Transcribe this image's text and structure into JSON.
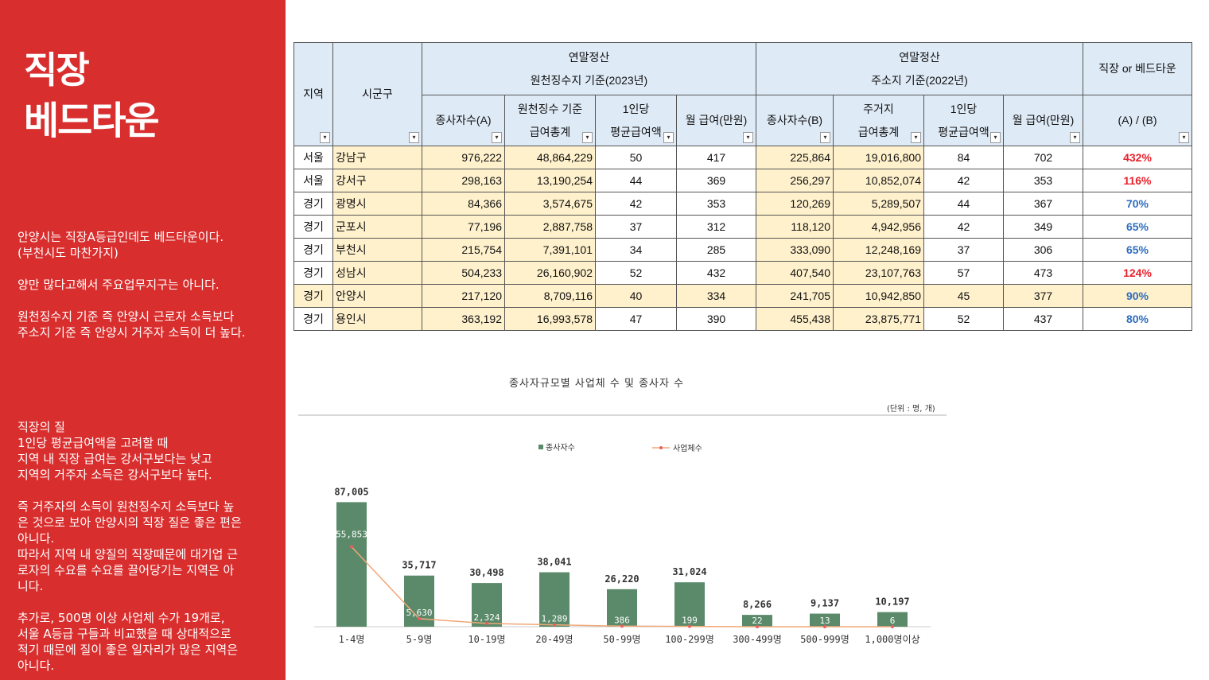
{
  "sidebar": {
    "title_line1": "직장",
    "title_line2": "베드타운",
    "desc1": "안양시는 직장A등급인데도 베드타운이다.\n(부천시도 마찬가지)\n\n양만 많다고해서 주요업무지구는 아니다.\n\n원천징수지 기준 즉 안양시 근로자 소득보다\n주소지 기준 즉 안양시 거주자 소득이 더 높다.",
    "desc2": "직장의 질\n1인당 평균급여액을 고려할 때\n지역 내 직장 급여는 강서구보다는 낮고\n지역의 거주자 소득은 강서구보다 높다.\n\n즉 거주자의 소득이 원천징수지 소득보다 높\n은 것으로 보아 안양시의 직장 질은 좋은 편은\n아니다.\n따라서 지역 내 양질의 직장때문에 대기업 근\n로자의 수요를 수요를 끌어당기는 지역은 아\n니다.\n\n추가로, 500명 이상 사업체 수가 19개로,\n서울 A등급 구들과 비교했을 때 상대적으로\n적기 때문에 질이 좋은 일자리가 많은 지역은\n아니다."
  },
  "table": {
    "h_region": "지역",
    "h_district": "시군구",
    "h_group1": "연말정산\n원천징수지 기준(2023년)",
    "h_group2": "연말정산\n주소지 기준(2022년)",
    "h_ratio": "직장 or 베드타운",
    "h_sub": [
      "종사자수(A)",
      "원천징수 기준\n급여총계",
      "1인당\n평균급여액",
      "월 급여(만원)",
      "종사자수(B)",
      "주거지\n급여총계",
      "1인당\n평균급여액",
      "월 급여(만원)",
      "(A) / (B)"
    ],
    "rows": [
      [
        "서울",
        "강남구",
        "976,222",
        "48,864,229",
        "50",
        "417",
        "225,864",
        "19,016,800",
        "84",
        "702",
        "432%"
      ],
      [
        "서울",
        "강서구",
        "298,163",
        "13,190,254",
        "44",
        "369",
        "256,297",
        "10,852,074",
        "42",
        "353",
        "116%"
      ],
      [
        "경기",
        "광명시",
        "84,366",
        "3,574,675",
        "42",
        "353",
        "120,269",
        "5,289,507",
        "44",
        "367",
        "70%"
      ],
      [
        "경기",
        "군포시",
        "77,196",
        "2,887,758",
        "37",
        "312",
        "118,120",
        "4,942,956",
        "42",
        "349",
        "65%"
      ],
      [
        "경기",
        "부천시",
        "215,754",
        "7,391,101",
        "34",
        "285",
        "333,090",
        "12,248,169",
        "37",
        "306",
        "65%"
      ],
      [
        "경기",
        "성남시",
        "504,233",
        "26,160,902",
        "52",
        "432",
        "407,540",
        "23,107,763",
        "57",
        "473",
        "124%"
      ],
      [
        "경기",
        "안양시",
        "217,120",
        "8,709,116",
        "40",
        "334",
        "241,705",
        "10,942,850",
        "45",
        "377",
        "90%"
      ],
      [
        "경기",
        "용인시",
        "363,192",
        "16,993,578",
        "47",
        "390",
        "455,438",
        "23,875,771",
        "52",
        "437",
        "80%"
      ]
    ],
    "ratio_colors": [
      "#e8212b",
      "#e8212b",
      "#2e6dbf",
      "#2e6dbf",
      "#2e6dbf",
      "#e8212b",
      "#2e6dbf",
      "#2e6dbf"
    ]
  },
  "chart_data": {
    "type": "bar",
    "title": "종사자규모별 사업체 수 및 종사자 수",
    "unit": "(단위 : 명, 개)",
    "categories": [
      "1-4명",
      "5-9명",
      "10-19명",
      "20-49명",
      "50-99명",
      "100-299명",
      "300-499명",
      "500-999명",
      "1,000명이상"
    ],
    "series": [
      {
        "name": "종사자수",
        "type": "bar",
        "color": "#5a8a6a",
        "values": [
          87005,
          35717,
          30498,
          38041,
          26220,
          31024,
          8266,
          9137,
          10197
        ],
        "labels": [
          "87,005",
          "35,717",
          "30,498",
          "38,041",
          "26,220",
          "31,024",
          "8,266",
          "9,137",
          "10,197"
        ]
      },
      {
        "name": "사업체수",
        "type": "line",
        "color": "#f0a878",
        "values": [
          55853,
          5630,
          2324,
          1289,
          386,
          199,
          22,
          13,
          6
        ],
        "labels": [
          "55,853",
          "5,630",
          "2,324",
          "1,289",
          "386",
          "199",
          "22",
          "13",
          "6"
        ]
      }
    ]
  }
}
